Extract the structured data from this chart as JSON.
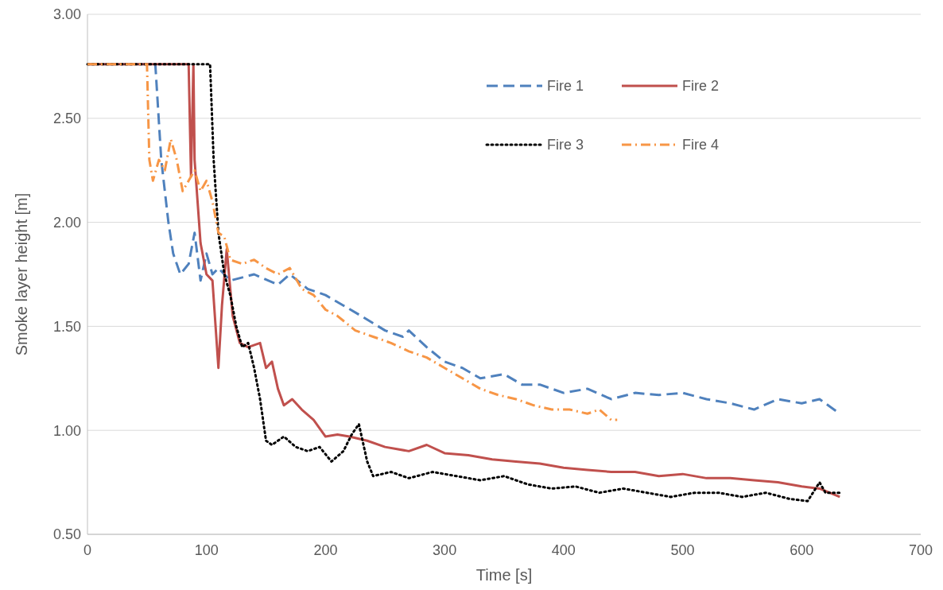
{
  "chart_data": {
    "type": "line",
    "xlabel": "Time [s]",
    "ylabel": "Smoke layer height [m]",
    "xlim": [
      0,
      700
    ],
    "ylim": [
      0.5,
      3
    ],
    "xticks": [
      0,
      100,
      200,
      300,
      400,
      500,
      600,
      700
    ],
    "yticks": [
      {
        "value": 0.5,
        "label": "0.50"
      },
      {
        "value": 1,
        "label": "1.00"
      },
      {
        "value": 1.5,
        "label": "1.50"
      },
      {
        "value": 2,
        "label": "2.00"
      },
      {
        "value": 2.5,
        "label": "2.50"
      },
      {
        "value": 3,
        "label": "3.00"
      }
    ],
    "grid": "y",
    "legend": "top right",
    "marker": "none",
    "series": [
      {
        "name": "Fire 1",
        "color": "#4f81bd",
        "line_style": "dashed",
        "x": [
          0,
          57,
          62,
          68,
          72,
          78,
          85,
          90,
          95,
          100,
          105,
          110,
          120,
          140,
          160,
          170,
          185,
          200,
          215,
          230,
          250,
          265,
          270,
          285,
          300,
          315,
          330,
          350,
          365,
          380,
          400,
          420,
          440,
          460,
          480,
          500,
          520,
          540,
          560,
          580,
          600,
          615,
          632
        ],
        "values": [
          2.76,
          2.76,
          2.3,
          2.0,
          1.85,
          1.75,
          1.8,
          1.95,
          1.72,
          1.85,
          1.75,
          1.78,
          1.72,
          1.75,
          1.7,
          1.75,
          1.68,
          1.65,
          1.6,
          1.55,
          1.48,
          1.45,
          1.48,
          1.4,
          1.33,
          1.3,
          1.25,
          1.27,
          1.22,
          1.22,
          1.18,
          1.2,
          1.15,
          1.18,
          1.17,
          1.18,
          1.15,
          1.13,
          1.1,
          1.15,
          1.13,
          1.15,
          1.08
        ]
      },
      {
        "name": "Fire 2",
        "color": "#c0504d",
        "line_style": "solid",
        "x": [
          0,
          85,
          87,
          89,
          90,
          95,
          100,
          105,
          110,
          113,
          117,
          122,
          128,
          135,
          145,
          150,
          155,
          160,
          165,
          172,
          180,
          190,
          200,
          210,
          220,
          235,
          250,
          270,
          285,
          300,
          320,
          340,
          360,
          380,
          400,
          420,
          440,
          460,
          480,
          500,
          520,
          540,
          560,
          580,
          600,
          615,
          632
        ],
        "values": [
          2.76,
          2.76,
          2.22,
          2.76,
          2.3,
          1.9,
          1.75,
          1.72,
          1.3,
          1.6,
          1.87,
          1.55,
          1.42,
          1.4,
          1.42,
          1.3,
          1.33,
          1.2,
          1.12,
          1.15,
          1.1,
          1.05,
          0.97,
          0.98,
          0.97,
          0.95,
          0.92,
          0.9,
          0.93,
          0.89,
          0.88,
          0.86,
          0.85,
          0.84,
          0.82,
          0.81,
          0.8,
          0.8,
          0.78,
          0.79,
          0.77,
          0.77,
          0.76,
          0.75,
          0.73,
          0.72,
          0.68
        ]
      },
      {
        "name": "Fire 3",
        "color": "#000000",
        "line_style": "dotted",
        "x": [
          0,
          103,
          106,
          110,
          115,
          120,
          125,
          130,
          135,
          140,
          145,
          150,
          155,
          165,
          175,
          185,
          195,
          205,
          215,
          222,
          228,
          235,
          240,
          255,
          270,
          290,
          310,
          330,
          350,
          370,
          390,
          410,
          430,
          450,
          470,
          490,
          510,
          530,
          550,
          570,
          590,
          605,
          615,
          620,
          632
        ],
        "values": [
          2.76,
          2.76,
          2.3,
          1.95,
          1.75,
          1.65,
          1.5,
          1.4,
          1.42,
          1.3,
          1.15,
          0.95,
          0.93,
          0.97,
          0.92,
          0.9,
          0.92,
          0.85,
          0.9,
          0.98,
          1.03,
          0.85,
          0.78,
          0.8,
          0.77,
          0.8,
          0.78,
          0.76,
          0.78,
          0.74,
          0.72,
          0.73,
          0.7,
          0.72,
          0.7,
          0.68,
          0.7,
          0.7,
          0.68,
          0.7,
          0.67,
          0.66,
          0.75,
          0.7,
          0.7
        ]
      },
      {
        "name": "Fire 4",
        "color": "#f79646",
        "line_style": "dashdot",
        "x": [
          0,
          50,
          52,
          55,
          60,
          65,
          70,
          75,
          80,
          85,
          90,
          95,
          100,
          105,
          110,
          115,
          120,
          130,
          140,
          150,
          160,
          170,
          180,
          190,
          200,
          210,
          225,
          240,
          255,
          270,
          285,
          300,
          315,
          330,
          345,
          360,
          375,
          390,
          405,
          420,
          430,
          440,
          445
        ],
        "values": [
          2.76,
          2.76,
          2.3,
          2.2,
          2.3,
          2.25,
          2.4,
          2.3,
          2.15,
          2.2,
          2.25,
          2.15,
          2.2,
          2.1,
          1.95,
          1.93,
          1.82,
          1.8,
          1.82,
          1.78,
          1.75,
          1.78,
          1.68,
          1.65,
          1.58,
          1.55,
          1.48,
          1.45,
          1.42,
          1.38,
          1.35,
          1.3,
          1.25,
          1.2,
          1.17,
          1.15,
          1.12,
          1.1,
          1.1,
          1.08,
          1.1,
          1.05,
          1.05
        ]
      }
    ]
  }
}
